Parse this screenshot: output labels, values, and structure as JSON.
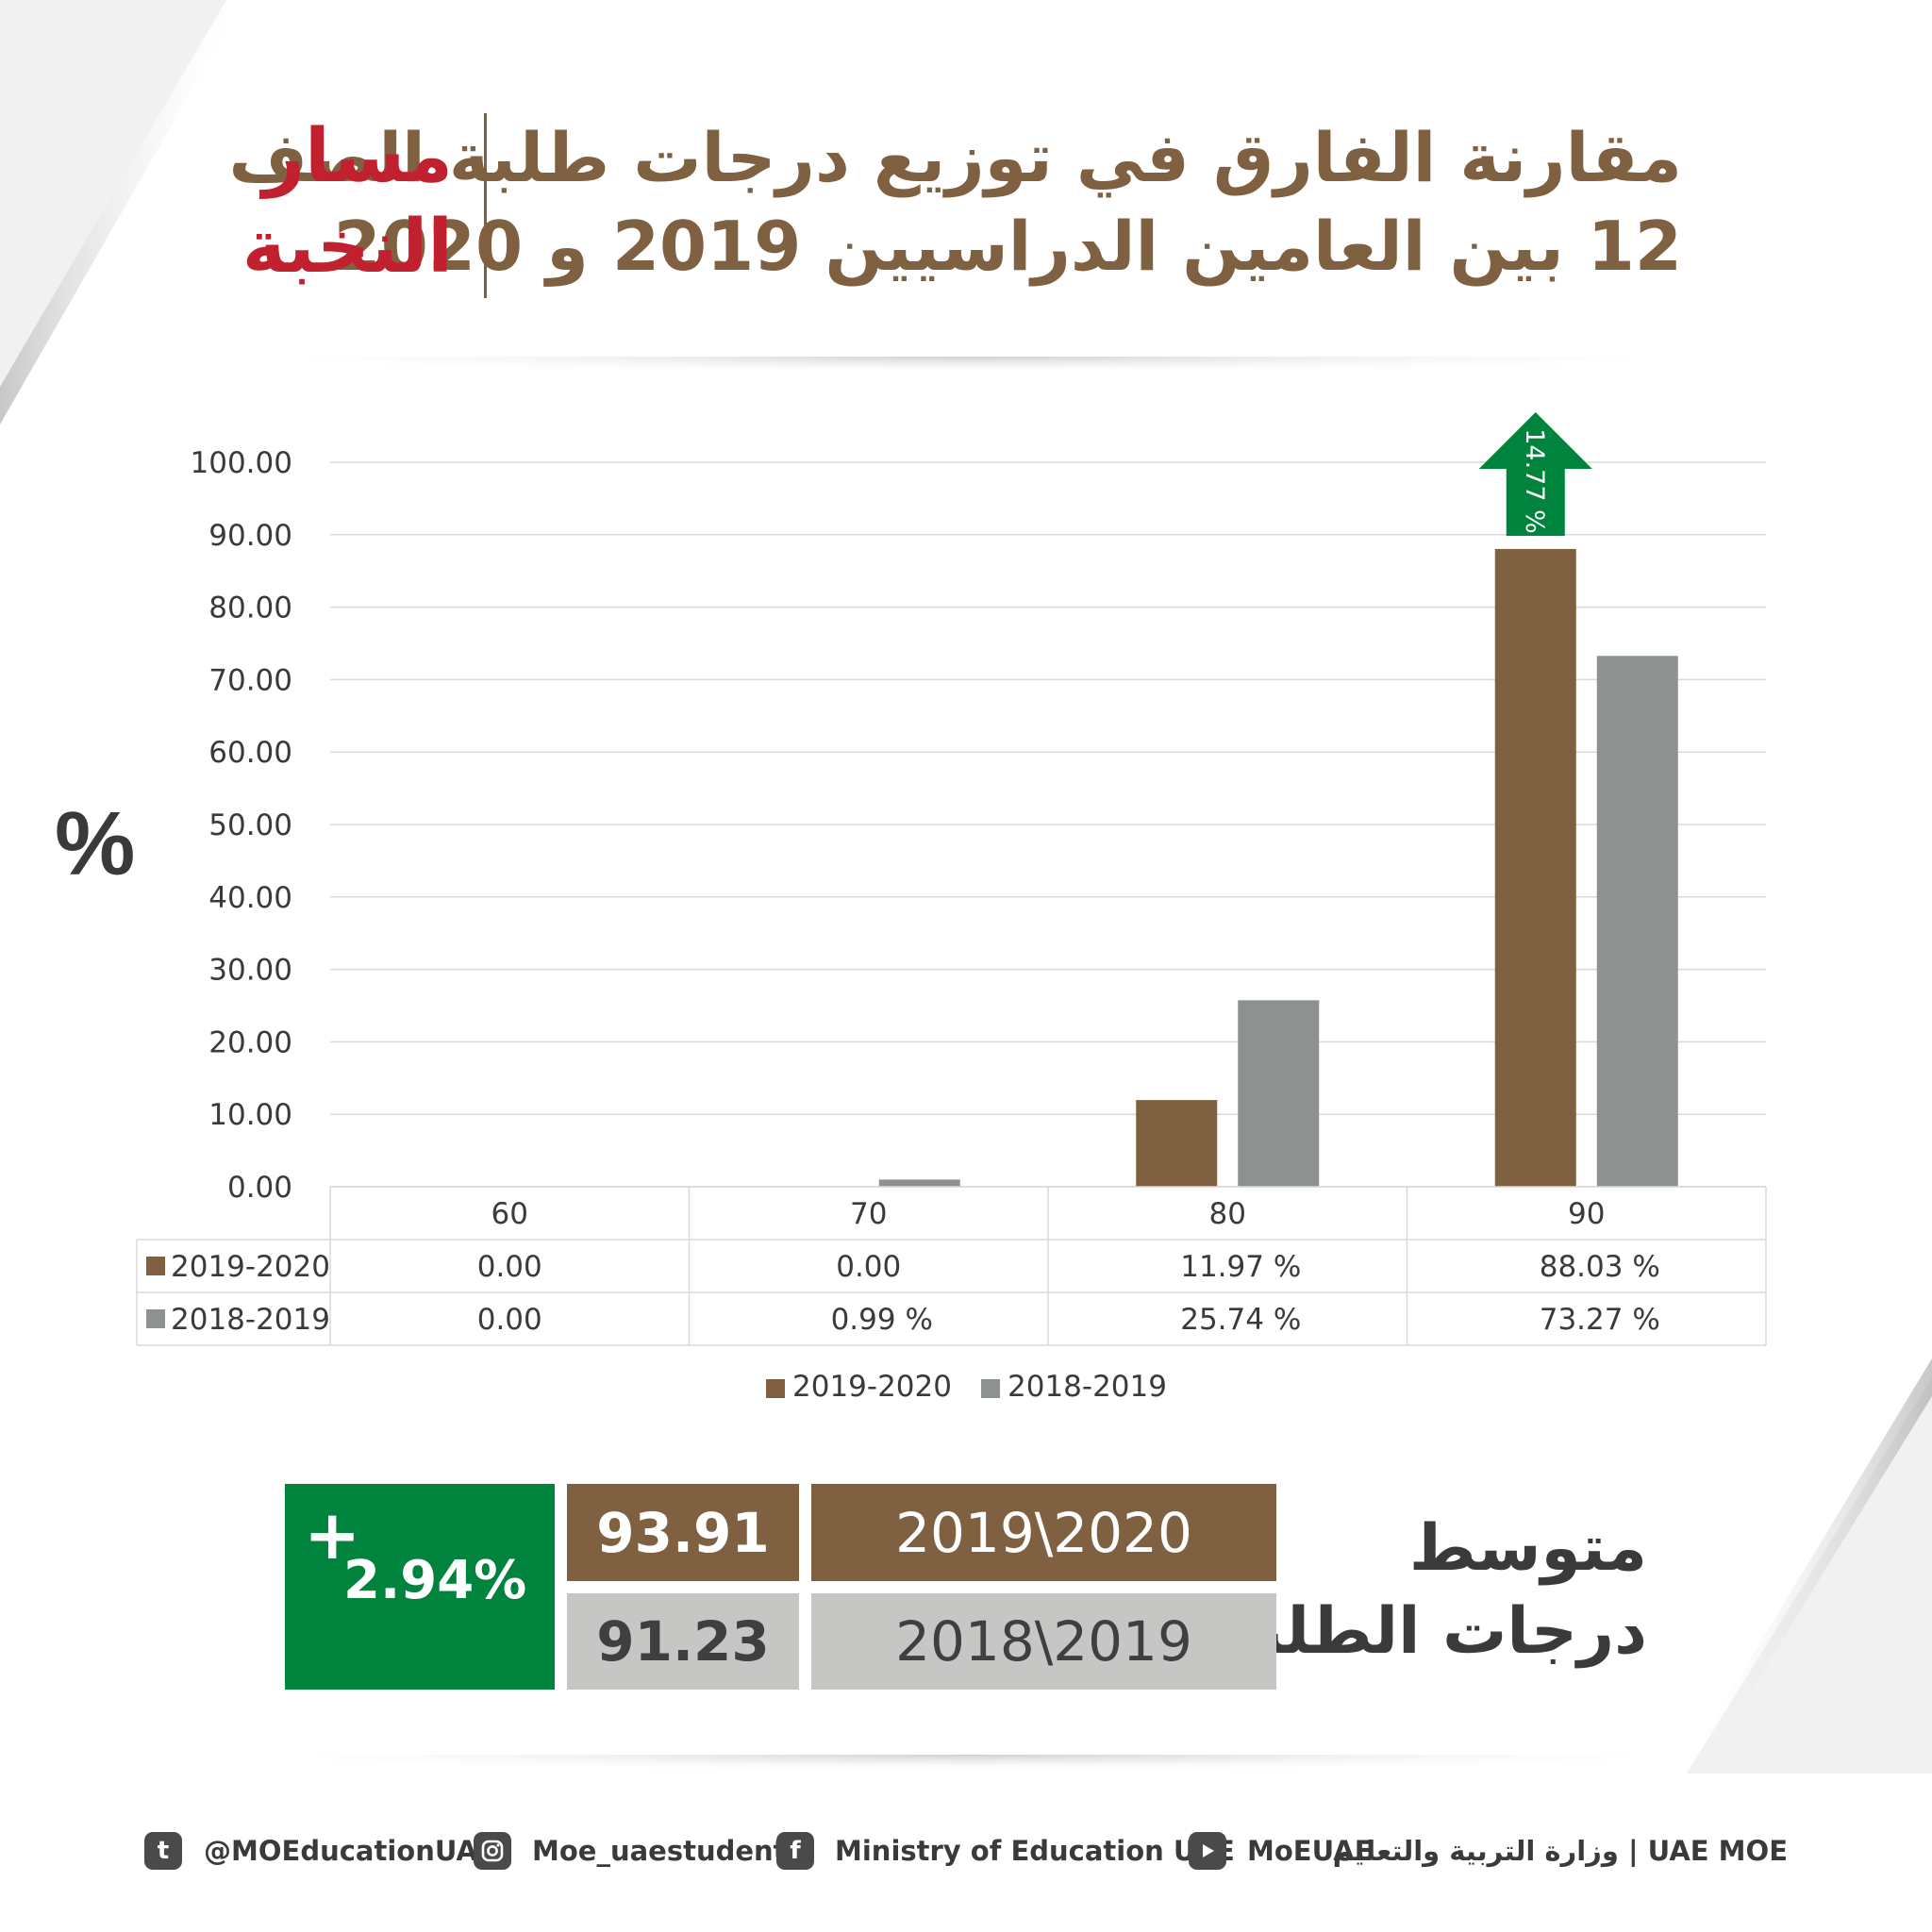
{
  "header": {
    "title_line1": "مقارنة الفارق في توزيع درجات طلبة الصف",
    "title_line2": "12 بين العامين الدراسيين 2019 و 2020",
    "tag_line1": "مسار",
    "tag_line2": "النخبة"
  },
  "colors": {
    "brown": "#7f6141",
    "gray": "#8d9190",
    "green": "#00843d",
    "red": "#c1202e",
    "light_gray": "#c6c6c5"
  },
  "chart_data": {
    "type": "bar",
    "categories": [
      "60",
      "70",
      "80",
      "90"
    ],
    "series": [
      {
        "name": "2019-2020",
        "values": [
          0.0,
          0.0,
          11.97,
          88.03
        ],
        "labels": [
          "0.00",
          "0.00",
          "11.97 %",
          "88.03 %"
        ]
      },
      {
        "name": "2018-2019",
        "values": [
          0.0,
          0.99,
          25.74,
          73.27
        ],
        "labels": [
          "0.00",
          "0.99 %",
          "25.74 %",
          "73.27 %"
        ]
      }
    ],
    "y_ticks": [
      "0.00",
      "10.00",
      "20.00",
      "30.00",
      "40.00",
      "50.00",
      "60.00",
      "70.00",
      "80.00",
      "90.00",
      "100.00"
    ],
    "ylim": [
      0,
      100
    ],
    "ylabel": "%",
    "grid": true,
    "legend_position": "bottom",
    "annotation": {
      "category": "90",
      "text": "14.77 %",
      "direction": "up"
    },
    "data_table": true
  },
  "averages": {
    "label_line1": "متوسط",
    "label_line2": "درجات الطلبة",
    "rows": [
      {
        "year": "2019\\2020",
        "value": "93.91"
      },
      {
        "year": "2018\\2019",
        "value": "91.23"
      }
    ],
    "diff_sign": "+",
    "diff_value": "2.94%"
  },
  "footer": {
    "twitter": "@MOEducationUAE",
    "instagram": "Moe_uaestudents",
    "facebook": "Ministry of Education UAE",
    "youtube": "MoEUAE",
    "org": "UAE MOE | وزارة التربية والتعليم",
    "icons": [
      "twitter-icon",
      "instagram-icon",
      "facebook-icon",
      "youtube-icon"
    ]
  }
}
